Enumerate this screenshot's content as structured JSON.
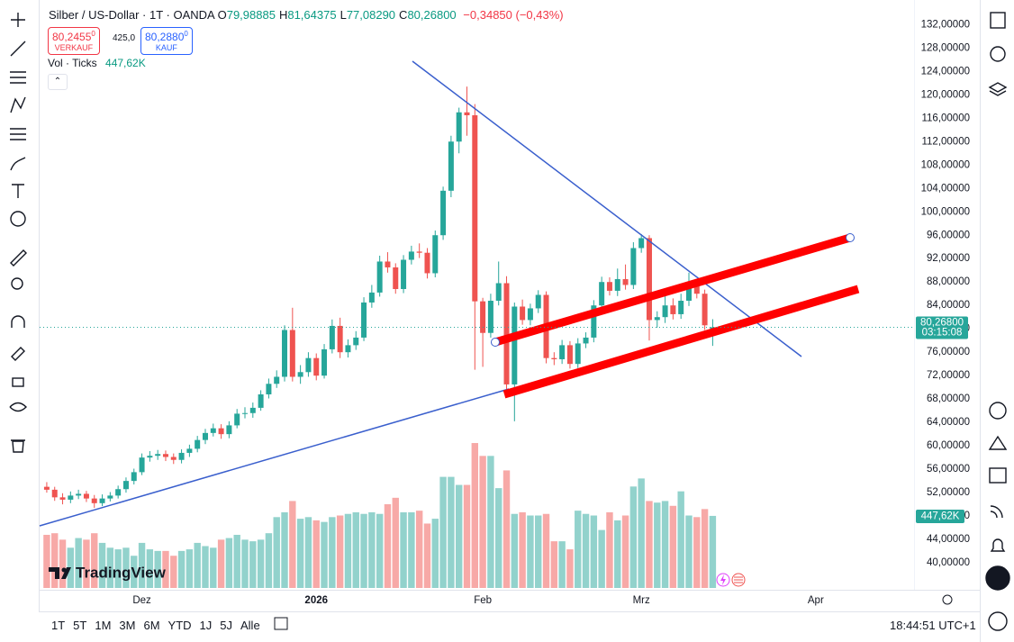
{
  "header": {
    "symbol": "Silber / US-Dollar · 1T · OANDA",
    "ohlc": [
      {
        "label": "O",
        "value": "79,98885"
      },
      {
        "label": "H",
        "value": "81,64375"
      },
      {
        "label": "L",
        "value": "77,08290"
      },
      {
        "label": "C",
        "value": "80,26800"
      }
    ],
    "change": "−0,34850 (−0,43%)",
    "sell": {
      "price": "80,2455",
      "small": "0",
      "label": "VERKAUF"
    },
    "spread": "425,0",
    "buy": {
      "price": "80,2880",
      "small": "0",
      "label": "KAUF"
    },
    "volume_legend": "Vol · Ticks"
  },
  "chart_data": {
    "type": "candlestick",
    "xlim": [
      -0.9,
      109.4
    ],
    "xticks": [
      {
        "value": 12,
        "label": "Dez"
      },
      {
        "value": 34,
        "label": "2026"
      },
      {
        "value": 55,
        "label": "Feb"
      },
      {
        "value": 75,
        "label": "Mrz"
      },
      {
        "value": 97,
        "label": "Apr"
      }
    ],
    "ylim": [
      35.4,
      136.2
    ],
    "yticks": [
      {
        "value": 132,
        "label": "132,00000"
      },
      {
        "value": 128,
        "label": "128,00000"
      },
      {
        "value": 124,
        "label": "124,00000"
      },
      {
        "value": 120,
        "label": "120,00000"
      },
      {
        "value": 116,
        "label": "116,00000"
      },
      {
        "value": 112,
        "label": "112,00000"
      },
      {
        "value": 108,
        "label": "108,00000"
      },
      {
        "value": 104,
        "label": "104,00000"
      },
      {
        "value": 100,
        "label": "100,00000"
      },
      {
        "value": 96,
        "label": "96,00000"
      },
      {
        "value": 92,
        "label": "92,00000"
      },
      {
        "value": 88,
        "label": "88,00000"
      },
      {
        "value": 84,
        "label": "84,00000"
      },
      {
        "value": 80,
        "label": "80,00000"
      },
      {
        "value": 76,
        "label": "76,00000"
      },
      {
        "value": 72,
        "label": "72,00000"
      },
      {
        "value": 68,
        "label": "68,00000"
      },
      {
        "value": 64,
        "label": "64,00000"
      },
      {
        "value": 60,
        "label": "60,00000"
      },
      {
        "value": 56,
        "label": "56,00000"
      },
      {
        "value": 52,
        "label": "52,00000"
      },
      {
        "value": 48,
        "label": "48,00000"
      },
      {
        "value": 44,
        "label": "44,00000"
      },
      {
        "value": 40,
        "label": "40,00000"
      }
    ],
    "y2lim": [
      0,
      3500000
    ],
    "grid": false,
    "up_color": "#26a69a",
    "down_color": "#ef5350",
    "open": [
      53.0,
      52.5,
      51.2,
      50.8,
      51.5,
      51.8,
      51.0,
      50.2,
      51.0,
      51.5,
      52.6,
      54.0,
      55.5,
      58.0,
      58.3,
      58.6,
      58.1,
      57.6,
      58.8,
      59.5,
      61.0,
      62.2,
      63.0,
      62.0,
      63.5,
      65.5,
      65.6,
      66.5,
      68.8,
      70.6,
      71.8,
      79.8,
      71.8,
      72.6,
      75.0,
      72.0,
      76.5,
      80.5,
      76.0,
      77.2,
      78.5,
      84.5,
      86.2,
      91.5,
      90.5,
      86.8,
      91.8,
      93.2,
      93.0,
      89.5,
      96.0,
      103.6,
      112.0,
      117.0,
      116.5,
      84.7,
      79.3,
      84.8,
      87.8,
      70.5,
      83.8,
      81.5,
      83.5,
      85.8,
      75.0,
      74.8,
      77.2,
      74.0,
      77.5,
      78.5,
      84.0,
      88.0,
      86.5,
      88.5,
      87.5,
      93.8,
      95.5,
      81.5,
      82.0,
      84.0,
      82.5,
      84.8,
      87.5,
      86.0,
      79.98885
    ],
    "high": [
      53.8,
      53.0,
      51.9,
      52.2,
      52.5,
      52.3,
      51.6,
      51.7,
      52.1,
      53.2,
      54.6,
      56.1,
      58.7,
      59.1,
      59.3,
      59.2,
      58.7,
      59.4,
      60.2,
      61.7,
      62.9,
      63.8,
      63.7,
      64.2,
      66.3,
      66.6,
      67.4,
      69.5,
      71.5,
      72.9,
      80.6,
      83.6,
      73.8,
      76.0,
      75.8,
      77.4,
      81.6,
      81.9,
      78.2,
      79.6,
      85.4,
      87.5,
      92.5,
      93.1,
      91.2,
      92.6,
      94.2,
      94.6,
      93.8,
      96.8,
      104.3,
      113.0,
      117.8,
      121.4,
      118.4,
      85.3,
      86.0,
      91.5,
      89.0,
      84.5,
      85.0,
      84.3,
      86.6,
      86.4,
      76.0,
      78.1,
      77.9,
      78.4,
      79.4,
      84.9,
      88.9,
      88.8,
      90.3,
      91.0,
      94.8,
      96.2,
      96.0,
      83.0,
      85.6,
      85.2,
      86.0,
      89.6,
      88.4,
      86.7,
      81.64375
    ],
    "low": [
      52.0,
      50.6,
      50.0,
      50.2,
      50.9,
      50.4,
      49.4,
      49.7,
      50.5,
      51.0,
      52.0,
      53.4,
      55.0,
      57.3,
      57.6,
      57.4,
      56.9,
      57.0,
      58.1,
      58.9,
      60.3,
      61.6,
      61.2,
      61.3,
      63.0,
      64.7,
      64.8,
      66.0,
      68.1,
      69.9,
      71.0,
      71.0,
      70.6,
      71.8,
      71.2,
      71.5,
      75.8,
      75.0,
      75.1,
      76.4,
      77.9,
      83.6,
      85.5,
      89.6,
      86.0,
      86.1,
      91.0,
      92.1,
      88.6,
      88.8,
      95.2,
      102.5,
      110.0,
      113.0,
      73.0,
      73.5,
      78.5,
      84.0,
      69.0,
      64.2,
      80.7,
      80.6,
      82.7,
      74.1,
      73.8,
      74.0,
      73.2,
      73.3,
      76.7,
      77.7,
      83.2,
      85.7,
      85.6,
      86.7,
      86.8,
      93.0,
      78.0,
      80.2,
      81.0,
      81.6,
      81.7,
      83.9,
      85.2,
      79.8,
      77.0829
    ],
    "close": [
      52.5,
      51.2,
      50.8,
      51.5,
      51.8,
      51.0,
      50.2,
      51.0,
      51.5,
      52.6,
      54.0,
      55.5,
      58.0,
      58.3,
      58.6,
      58.1,
      57.6,
      58.8,
      59.5,
      61.0,
      62.2,
      63.0,
      62.0,
      63.5,
      65.5,
      65.6,
      66.5,
      68.8,
      70.6,
      71.8,
      79.8,
      71.8,
      72.6,
      75.0,
      72.0,
      76.5,
      80.5,
      76.0,
      77.2,
      78.5,
      84.5,
      86.2,
      91.5,
      90.5,
      86.8,
      91.8,
      93.2,
      93.0,
      89.5,
      96.0,
      103.6,
      112.0,
      117.0,
      116.5,
      84.7,
      79.3,
      84.8,
      87.8,
      70.5,
      83.8,
      81.5,
      83.5,
      85.8,
      75.0,
      74.8,
      77.2,
      74.0,
      77.5,
      78.5,
      84.0,
      88.0,
      86.5,
      88.5,
      87.5,
      93.8,
      95.5,
      81.5,
      82.0,
      84.0,
      82.5,
      84.8,
      87.5,
      86.0,
      80.6,
      80.268
    ],
    "volume": [
      330000,
      340000,
      300000,
      250000,
      310000,
      300000,
      340000,
      280000,
      250000,
      240000,
      250000,
      200000,
      280000,
      240000,
      230000,
      230000,
      200000,
      230000,
      240000,
      280000,
      260000,
      250000,
      300000,
      310000,
      330000,
      300000,
      290000,
      300000,
      340000,
      440000,
      470000,
      540000,
      430000,
      440000,
      420000,
      410000,
      440000,
      450000,
      460000,
      470000,
      460000,
      470000,
      460000,
      520000,
      560000,
      470000,
      470000,
      480000,
      400000,
      430000,
      690000,
      690000,
      640000,
      640000,
      900000,
      820000,
      820000,
      620000,
      730000,
      460000,
      470000,
      450000,
      450000,
      460000,
      290000,
      290000,
      240000,
      480000,
      460000,
      450000,
      360000,
      470000,
      420000,
      450000,
      630000,
      680000,
      540000,
      530000,
      540000,
      510000,
      600000,
      450000,
      440000,
      490000,
      447620
    ],
    "last_volume_label": "447,62K",
    "last_price_label": "80,26800",
    "countdown": "03:15:08",
    "watermark": "TradingView"
  },
  "bottom_bar": {
    "ranges": [
      "1T",
      "5T",
      "1M",
      "3M",
      "6M",
      "YTD",
      "1J",
      "5J",
      "Alle"
    ],
    "clock": "18:44:51 UTC+1"
  }
}
